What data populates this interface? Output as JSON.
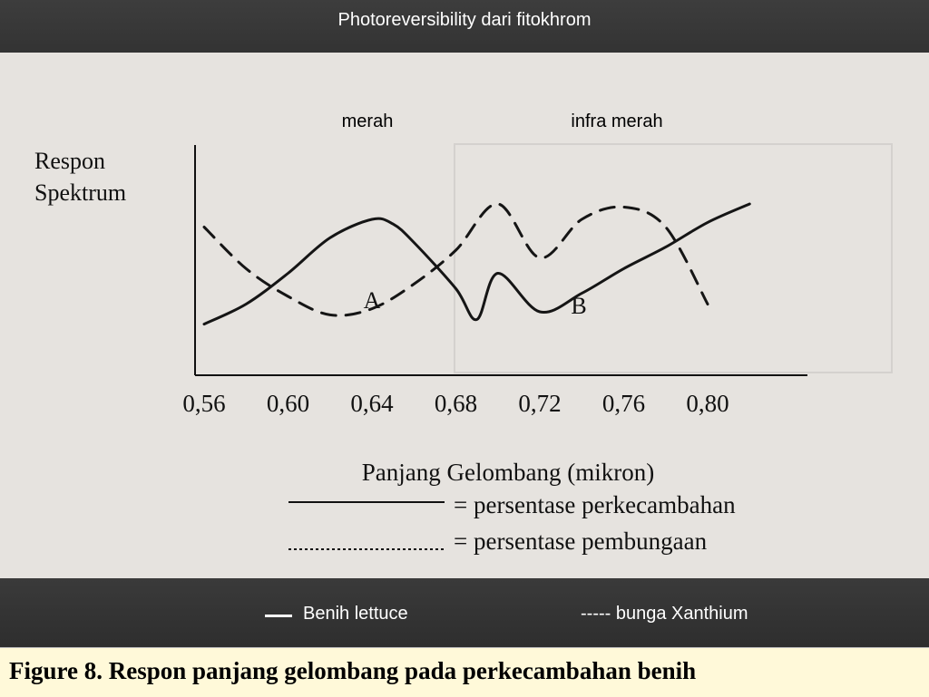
{
  "header": {
    "title": "Photoreversibility dari fitokhrom"
  },
  "legend": {
    "item1": "Benih lettuce",
    "item2": "----- bunga Xanthium"
  },
  "caption": "Figure 8.  Respon panjang gelombang  pada perkecambahan benih",
  "chart_data": {
    "type": "line",
    "ylabel": "Respon Spektrum",
    "xlabel": "Panjang Gelombang (mikron)",
    "x_ticks": [
      "0,56",
      "0,60",
      "0,64",
      "0,68",
      "0,72",
      "0,76",
      "0,80"
    ],
    "band_labels": [
      "merah",
      "infra merah"
    ],
    "region_labels": [
      "A",
      "B"
    ],
    "legend_entries": [
      "= persentase perkecambahan",
      "= persentase pembungaan"
    ],
    "series": [
      {
        "name": "persentase perkecambahan",
        "style": "solid",
        "x": [
          0.56,
          0.58,
          0.6,
          0.62,
          0.64,
          0.65,
          0.66,
          0.68,
          0.69,
          0.7,
          0.72,
          0.74,
          0.76,
          0.78,
          0.8,
          0.82
        ],
        "y": [
          0.12,
          0.25,
          0.45,
          0.68,
          0.8,
          0.77,
          0.65,
          0.35,
          0.15,
          0.45,
          0.2,
          0.32,
          0.48,
          0.62,
          0.78,
          0.9
        ]
      },
      {
        "name": "persentase pembungaan",
        "style": "dashed",
        "x": [
          0.56,
          0.58,
          0.6,
          0.62,
          0.64,
          0.66,
          0.68,
          0.7,
          0.72,
          0.74,
          0.76,
          0.78,
          0.8
        ],
        "y": [
          0.75,
          0.48,
          0.3,
          0.18,
          0.22,
          0.38,
          0.6,
          0.9,
          0.55,
          0.8,
          0.88,
          0.75,
          0.25
        ]
      }
    ]
  }
}
